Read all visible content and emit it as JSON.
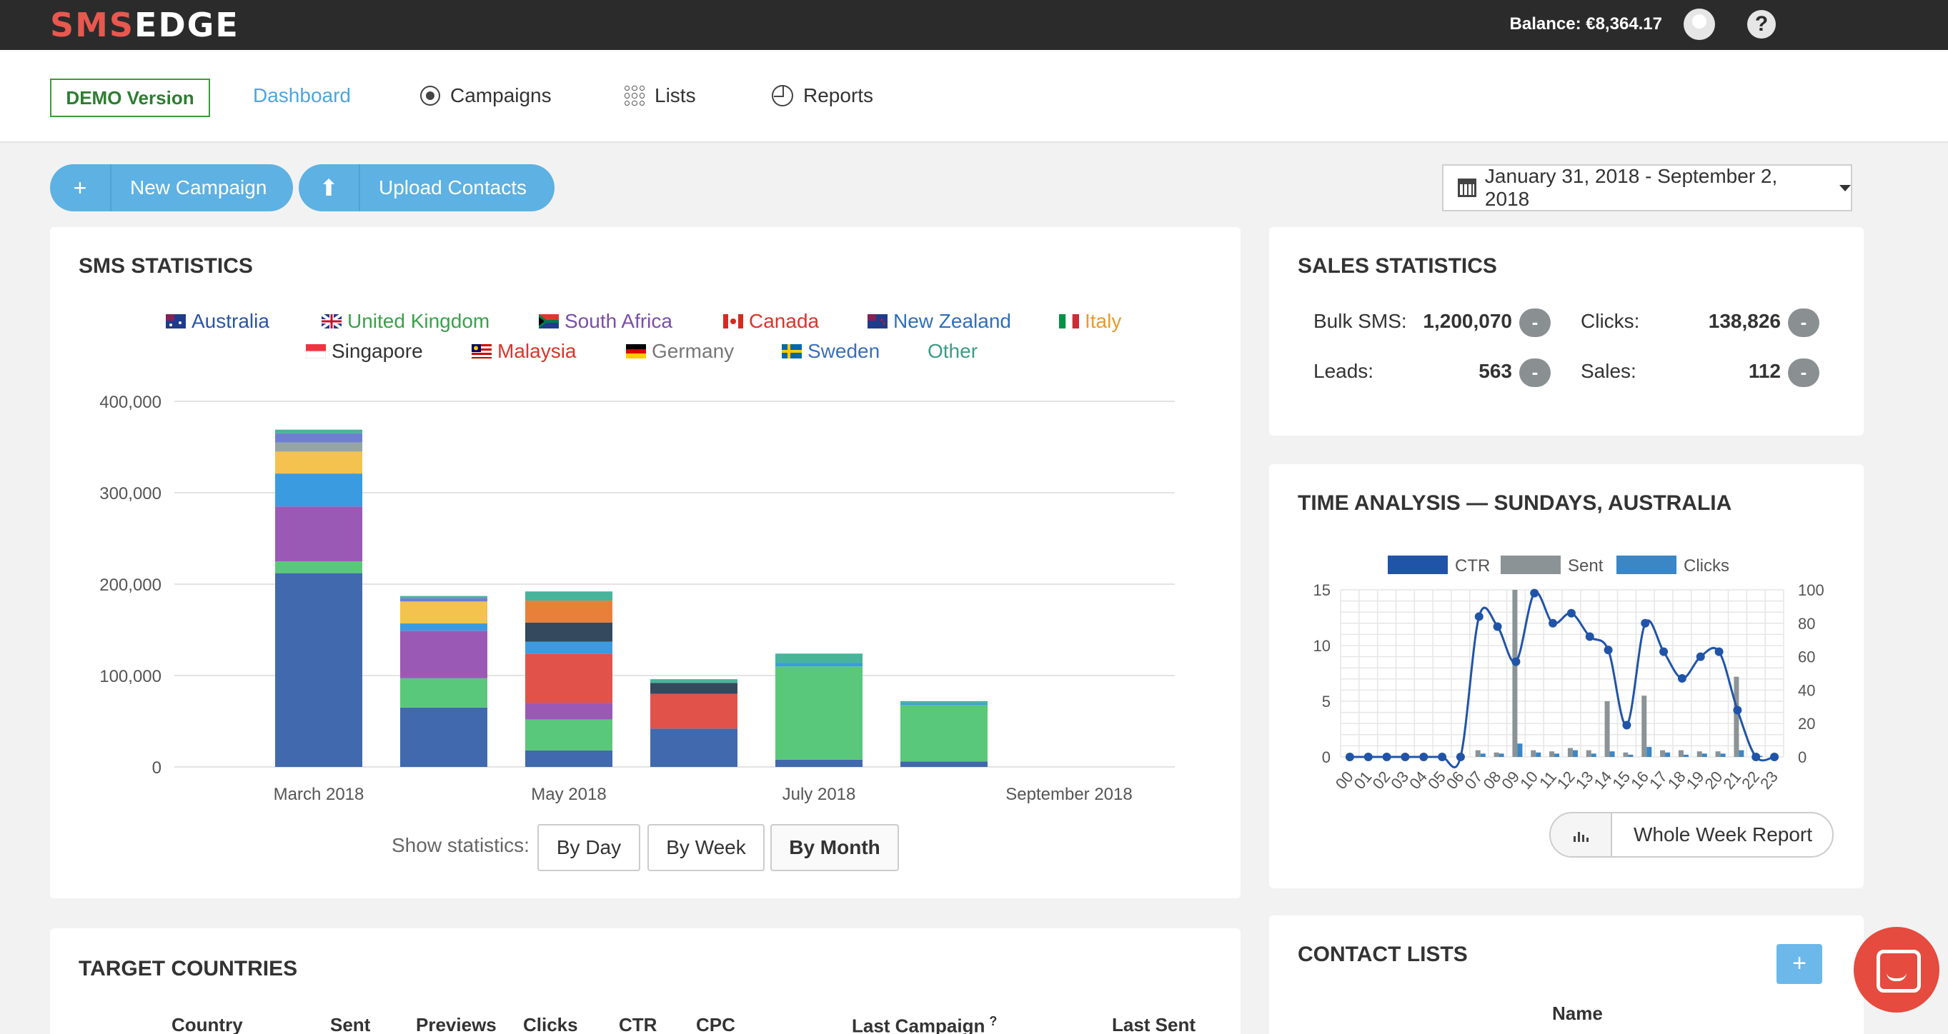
{
  "topbar": {
    "logo_part1": "SMS",
    "logo_part2": "EDGE",
    "balance": "Balance: €8,364.17"
  },
  "nav": {
    "demo": "DEMO Version",
    "dashboard": "Dashboard",
    "campaigns": "Campaigns",
    "lists": "Lists",
    "reports": "Reports"
  },
  "actions": {
    "new_campaign": "New Campaign",
    "upload_contacts": "Upload Contacts",
    "date_range": "January 31, 2018 - September 2, 2018"
  },
  "sms_statistics": {
    "title": "SMS STATISTICS",
    "legend": [
      {
        "label": "Australia",
        "color": "#2a56a4"
      },
      {
        "label": "United Kingdom",
        "color": "#3aa14a"
      },
      {
        "label": "South Africa",
        "color": "#7a4fa6"
      },
      {
        "label": "Canada",
        "color": "#d9352a"
      },
      {
        "label": "New Zealand",
        "color": "#2f6fb8"
      },
      {
        "label": "Italy",
        "color": "#e89b2a"
      },
      {
        "label": "Singapore",
        "color": "#333333"
      },
      {
        "label": "Malaysia",
        "color": "#d9352a"
      },
      {
        "label": "Germany",
        "color": "#777777"
      },
      {
        "label": "Sweden",
        "color": "#3a6fb8"
      },
      {
        "label": "Other",
        "color": "#3d9b85"
      }
    ],
    "show_label": "Show statistics:",
    "buttons": [
      "By Day",
      "By Week",
      "By Month"
    ],
    "selected": "By Month"
  },
  "chart_data": [
    {
      "type": "bar",
      "stacked": true,
      "x_tick_labels": [
        "March 2018",
        "May 2018",
        "July 2018",
        "September 2018"
      ],
      "ylim": [
        0,
        400000
      ],
      "y_ticks": [
        "0",
        "100,000",
        "200,000",
        "300,000",
        "400,000"
      ],
      "categories": [
        "Mar 2018",
        "Apr 2018",
        "May 2018",
        "Jun 2018",
        "Jul 2018",
        "Aug 2018"
      ],
      "series": [
        {
          "name": "Australia",
          "color": "#4169ad",
          "values": [
            212000,
            65000,
            18000,
            42000,
            8000,
            6000
          ]
        },
        {
          "name": "United Kingdom",
          "color": "#5ac87a",
          "values": [
            13000,
            32000,
            34000,
            0,
            102000,
            62000
          ]
        },
        {
          "name": "South Africa",
          "color": "#9b59b6",
          "values": [
            60000,
            52000,
            18000,
            0,
            0,
            0
          ]
        },
        {
          "name": "Canada",
          "color": "#e0524a",
          "values": [
            0,
            0,
            54000,
            38000,
            0,
            0
          ]
        },
        {
          "name": "New Zealand",
          "color": "#3b9be0",
          "values": [
            36000,
            8000,
            13000,
            0,
            4000,
            2000
          ]
        },
        {
          "name": "Italy",
          "color": "#f3c24f",
          "values": [
            24000,
            24000,
            0,
            0,
            0,
            0
          ]
        },
        {
          "name": "Singapore",
          "color": "#34495e",
          "values": [
            0,
            0,
            21000,
            12000,
            0,
            0
          ]
        },
        {
          "name": "Malaysia",
          "color": "#e8803a",
          "values": [
            0,
            0,
            24000,
            0,
            0,
            0
          ]
        },
        {
          "name": "Germany",
          "color": "#95a5a6",
          "values": [
            10000,
            0,
            0,
            0,
            0,
            0
          ]
        },
        {
          "name": "Sweden",
          "color": "#6f7fd0",
          "values": [
            10000,
            4000,
            0,
            0,
            0,
            0
          ]
        },
        {
          "name": "Other",
          "color": "#48b49a",
          "values": [
            4000,
            2000,
            10000,
            4000,
            10000,
            2000
          ]
        }
      ]
    },
    {
      "type": "line",
      "x": [
        "00",
        "01",
        "02",
        "03",
        "04",
        "05",
        "06",
        "07",
        "08",
        "09",
        "10",
        "11",
        "12",
        "13",
        "14",
        "15",
        "16",
        "17",
        "18",
        "19",
        "20",
        "21",
        "22",
        "23"
      ],
      "left_ylim": [
        0,
        15
      ],
      "right_ylim": [
        0,
        100
      ],
      "left_ticks": [
        "0",
        "5",
        "10",
        "15"
      ],
      "right_ticks": [
        "0",
        "20",
        "40",
        "60",
        "80",
        "100"
      ],
      "series": [
        {
          "name": "CTR",
          "axis": "right",
          "color": "#2054a8",
          "values": [
            0,
            0,
            0,
            0,
            0,
            0,
            0,
            84,
            78,
            57,
            98,
            80,
            86,
            72,
            64,
            19,
            80,
            63,
            47,
            60,
            63,
            28,
            0,
            0
          ]
        },
        {
          "name": "Sent",
          "axis": "left",
          "color": "#8b9396",
          "values": [
            0,
            0,
            0,
            0,
            0,
            0,
            0,
            0.6,
            0.4,
            15,
            0.6,
            0.5,
            0.8,
            0.6,
            5,
            0.4,
            5.5,
            0.6,
            0.6,
            0.5,
            0.5,
            7.2,
            0.3,
            0
          ]
        },
        {
          "name": "Clicks",
          "axis": "left",
          "color": "#3b86c4",
          "values": [
            0,
            0,
            0,
            0,
            0,
            0,
            0,
            0.3,
            0.3,
            1.2,
            0.4,
            0.3,
            0.6,
            0.3,
            0.5,
            0.2,
            0.9,
            0.4,
            0.2,
            0.3,
            0.3,
            0.6,
            0.1,
            0
          ]
        }
      ]
    }
  ],
  "sales_statistics": {
    "title": "SALES STATISTICS",
    "items": [
      {
        "label": "Bulk SMS:",
        "value": "1,200,070"
      },
      {
        "label": "Clicks:",
        "value": "138,826"
      },
      {
        "label": "Leads:",
        "value": "563"
      },
      {
        "label": "Sales:",
        "value": "112"
      }
    ],
    "badge": "-"
  },
  "time_analysis": {
    "title": "TIME ANALYSIS — SUNDAYS, AUSTRALIA",
    "report_button": "Whole Week Report"
  },
  "target_countries": {
    "title": "TARGET COUNTRIES",
    "columns": [
      "Country",
      "Sent",
      "Previews",
      "Clicks",
      "CTR",
      "CPC",
      "Last Campaign",
      "Last Sent"
    ],
    "footnote": "?"
  },
  "contact_lists": {
    "title": "CONTACT LISTS",
    "add": "+",
    "column": "Name"
  }
}
